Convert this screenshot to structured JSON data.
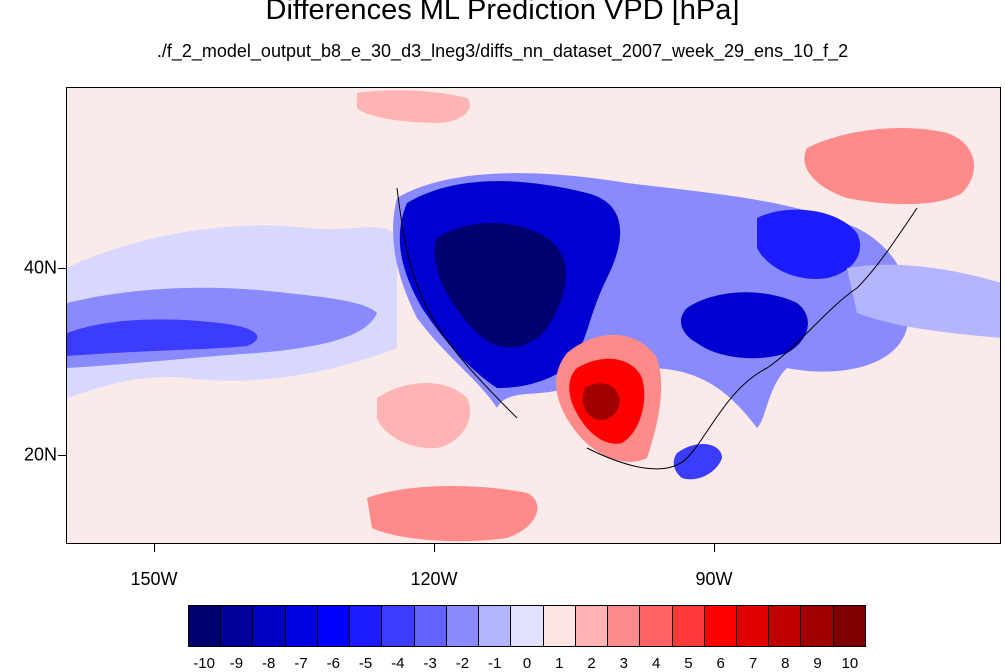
{
  "title": "Differences ML Prediction VPD [hPa]",
  "subtitle": "./f_2_model_output_b8_e_30_d3_lneg3/diffs_nn_dataset_2007_week_29_ens_10_f_2",
  "lon_labels": [
    "150W",
    "120W",
    "90W"
  ],
  "lat_labels": [
    "40N",
    "20N"
  ],
  "colorbar": {
    "labels": [
      "-10",
      "-9",
      "-8",
      "-7",
      "-6",
      "-5",
      "-4",
      "-3",
      "-2",
      "-1",
      "0",
      "1",
      "2",
      "3",
      "4",
      "5",
      "6",
      "7",
      "8",
      "9",
      "10"
    ],
    "colors": [
      "#00006e",
      "#000096",
      "#0000c0",
      "#0000e0",
      "#0000ff",
      "#1c1cff",
      "#3c3cff",
      "#6262ff",
      "#8a8aff",
      "#b4b4ff",
      "#e0e0ff",
      "#ffe4e4",
      "#ffb4b4",
      "#ff8a8a",
      "#ff6262",
      "#ff3838",
      "#ff0000",
      "#e00000",
      "#c00000",
      "#a00000",
      "#800000"
    ]
  },
  "colors": {
    "background": "#fbeaea",
    "strong_neg": "#00006e",
    "neg": "#3c3cff",
    "light_neg": "#b4b4ff",
    "light_pos": "#ffb4b4",
    "pos": "#ff3838",
    "strong_pos": "#a00000"
  }
}
